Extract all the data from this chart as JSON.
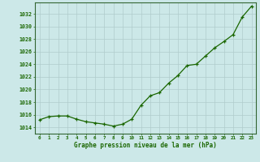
{
  "hours": [
    0,
    1,
    2,
    3,
    4,
    5,
    6,
    7,
    8,
    9,
    10,
    11,
    12,
    13,
    14,
    15,
    16,
    17,
    18,
    19,
    20,
    21,
    22,
    23
  ],
  "pressure": [
    1015.2,
    1015.7,
    1015.8,
    1015.8,
    1015.3,
    1014.9,
    1014.7,
    1014.5,
    1014.2,
    1014.5,
    1015.3,
    1017.5,
    1019.0,
    1019.5,
    1021.0,
    1022.2,
    1023.8,
    1024.0,
    1025.3,
    1026.6,
    1027.6,
    1028.7,
    1031.5,
    1033.2
  ],
  "line_color": "#1a6600",
  "marker": "+",
  "bg_color": "#cce8e8",
  "grid_color": "#b0cccc",
  "xlabel": "Graphe pression niveau de la mer (hPa)",
  "xlabel_color": "#1a6600",
  "tick_color": "#1a6600",
  "ylabel_ticks": [
    1014,
    1016,
    1018,
    1020,
    1022,
    1024,
    1026,
    1028,
    1030,
    1032
  ],
  "ylim": [
    1013.0,
    1033.8
  ],
  "xlim": [
    -0.5,
    23.5
  ]
}
